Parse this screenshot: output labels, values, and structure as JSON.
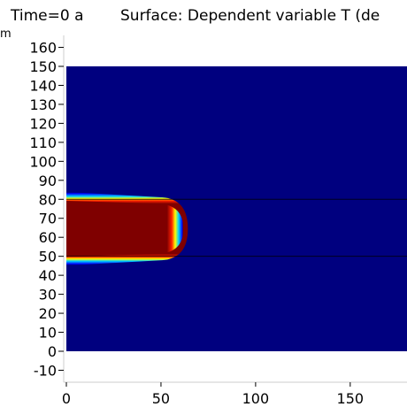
{
  "header": {
    "time_label": "Time=0 a",
    "surface_label": "Surface: Dependent variable T (de"
  },
  "axis_unit_label": "m",
  "chart_data": {
    "type": "heatmap",
    "title": "Surface: Dependent variable T (de",
    "time": "Time=0 a",
    "xlabel": "",
    "ylabel": "m",
    "xlim": [
      -1,
      180
    ],
    "ylim": [
      -16,
      167
    ],
    "x_ticks": [
      0,
      50,
      100,
      150
    ],
    "x_tick_labels": [
      "0",
      "50",
      "100",
      "150"
    ],
    "y_ticks": [
      -10,
      0,
      10,
      20,
      30,
      40,
      50,
      60,
      70,
      80,
      90,
      100,
      110,
      120,
      130,
      140,
      150,
      160
    ],
    "y_tick_labels": [
      "-10",
      "0",
      "10",
      "20",
      "30",
      "40",
      "50",
      "60",
      "70",
      "80",
      "90",
      "100",
      "110",
      "120",
      "130",
      "140",
      "150",
      "160"
    ],
    "grid": false,
    "colormap": "rainbow (dark blue = low, dark red = high)",
    "domain": {
      "x": [
        0,
        180
      ],
      "y": [
        0,
        150
      ]
    },
    "layer_boundaries_y": [
      50,
      80
    ],
    "hot_region": {
      "x": [
        0,
        60
      ],
      "y": [
        47,
        82
      ],
      "shape": "rounded, bulging at right end"
    },
    "colors": {
      "low": "#00007f",
      "high": "#7f0000",
      "boundary_line": "#000000"
    }
  }
}
